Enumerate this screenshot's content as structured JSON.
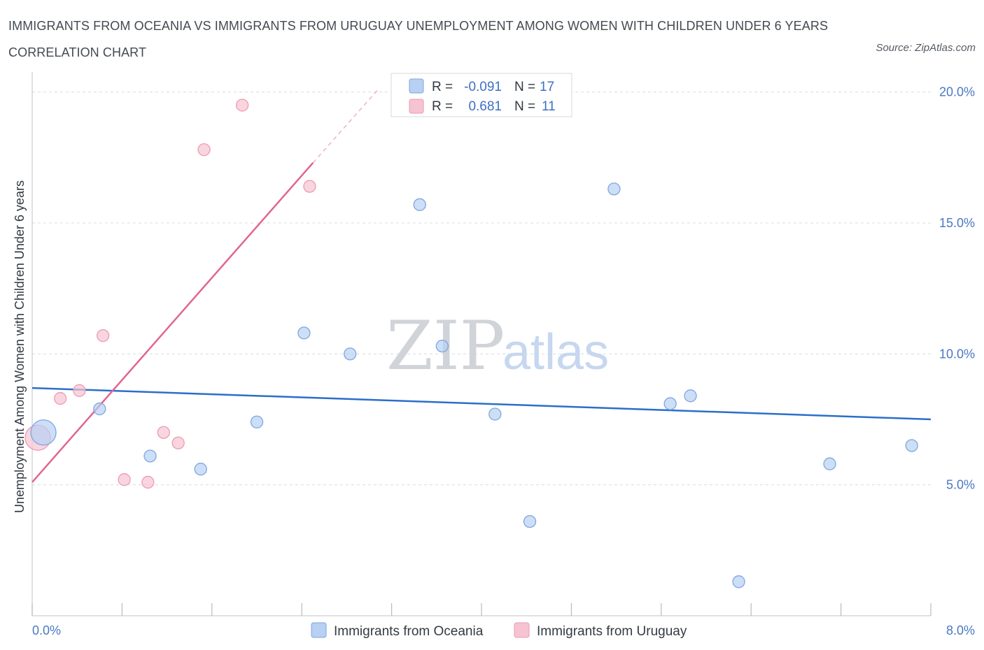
{
  "title": "IMMIGRANTS FROM OCEANIA VS IMMIGRANTS FROM URUGUAY UNEMPLOYMENT AMONG WOMEN WITH CHILDREN UNDER 6 YEARS CORRELATION CHART",
  "source": "Source: ZipAtlas.com",
  "watermark": {
    "part1": "ZIP",
    "part2": "atlas"
  },
  "colors": {
    "oceania_fill": "#b8d0f3",
    "oceania_stroke": "#7ea6df",
    "oceania_line": "#2a6fca",
    "uruguay_fill": "#f6c3d2",
    "uruguay_stroke": "#ee9ab3",
    "uruguay_line": "#e06690",
    "grid": "#d8dce2",
    "tick_label": "#4a78c2"
  },
  "legend": {
    "rows": [
      {
        "r_label": "R =",
        "r_value": "-0.091",
        "n_label": "N =",
        "n_value": "17"
      },
      {
        "r_label": "R =",
        "r_value": "0.681",
        "n_label": "N =",
        "n_value": "11"
      }
    ]
  },
  "bottom_legend": [
    "Immigrants from Oceania",
    "Immigrants from Uruguay"
  ],
  "chart_data": {
    "type": "scatter",
    "title": "IMMIGRANTS FROM OCEANIA VS IMMIGRANTS FROM URUGUAY UNEMPLOYMENT AMONG WOMEN WITH CHILDREN UNDER 6 YEARS CORRELATION CHART",
    "xlabel": "",
    "ylabel": "Unemployment Among Women with Children Under 6 years",
    "xlim": [
      0,
      8
    ],
    "ylim": [
      0,
      20.5
    ],
    "x_tick_labels": [
      "0.0%",
      "8.0%"
    ],
    "y_ticks": [
      5,
      10,
      15,
      20
    ],
    "y_tick_labels": [
      "5.0%",
      "10.0%",
      "15.0%",
      "20.0%"
    ],
    "grid": true,
    "series": [
      {
        "name": "Immigrants from Oceania",
        "r": -0.091,
        "n": 17,
        "points": [
          {
            "x": 0.1,
            "y": 7.0,
            "big": true
          },
          {
            "x": 0.6,
            "y": 7.9
          },
          {
            "x": 1.05,
            "y": 6.1
          },
          {
            "x": 1.5,
            "y": 5.6
          },
          {
            "x": 2.0,
            "y": 7.4
          },
          {
            "x": 2.42,
            "y": 10.8
          },
          {
            "x": 2.83,
            "y": 10.0
          },
          {
            "x": 3.45,
            "y": 15.7
          },
          {
            "x": 3.65,
            "y": 10.3
          },
          {
            "x": 4.12,
            "y": 7.7
          },
          {
            "x": 4.43,
            "y": 3.6
          },
          {
            "x": 5.18,
            "y": 16.3
          },
          {
            "x": 5.68,
            "y": 8.1
          },
          {
            "x": 5.86,
            "y": 8.4
          },
          {
            "x": 6.29,
            "y": 1.3
          },
          {
            "x": 7.1,
            "y": 5.8
          },
          {
            "x": 7.83,
            "y": 6.5
          }
        ],
        "trend": {
          "x0": 0,
          "y0": 8.7,
          "x1": 8,
          "y1": 7.5
        }
      },
      {
        "name": "Immigrants from Uruguay",
        "r": 0.681,
        "n": 11,
        "points": [
          {
            "x": 0.05,
            "y": 6.8,
            "big": true
          },
          {
            "x": 0.25,
            "y": 8.3
          },
          {
            "x": 0.42,
            "y": 8.6
          },
          {
            "x": 0.63,
            "y": 10.7
          },
          {
            "x": 0.82,
            "y": 5.2
          },
          {
            "x": 1.03,
            "y": 5.1
          },
          {
            "x": 1.17,
            "y": 7.0
          },
          {
            "x": 1.3,
            "y": 6.6
          },
          {
            "x": 1.53,
            "y": 17.8
          },
          {
            "x": 1.87,
            "y": 19.5
          },
          {
            "x": 2.47,
            "y": 16.4
          }
        ],
        "trend": {
          "x0": 0,
          "y0": 5.1,
          "x1": 2.5,
          "y1": 17.3
        },
        "trend_dashed_to": {
          "x": 3.08,
          "y": 20.1
        }
      }
    ]
  }
}
